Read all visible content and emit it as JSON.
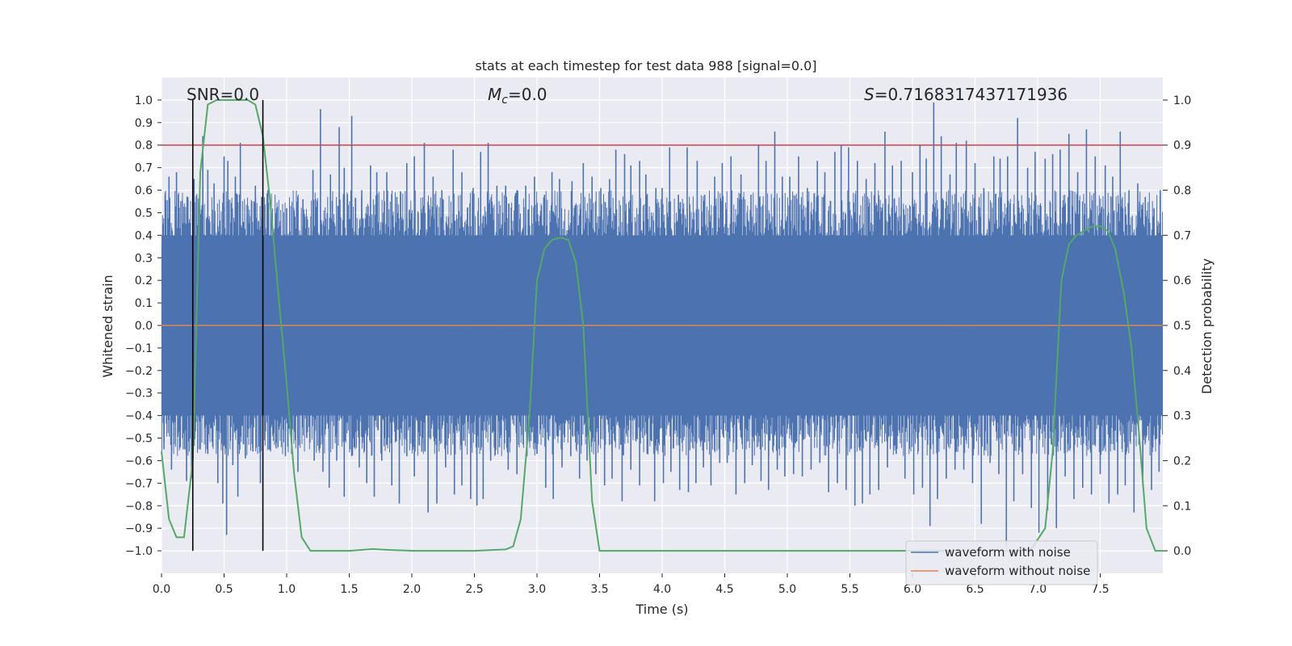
{
  "chart_data": {
    "type": "line",
    "title": "stats at each timestep for test data 988 [signal=0.0]",
    "xlabel": "Time (s)",
    "ylabel_left": "Whitened strain",
    "ylabel_right": "Detection probability",
    "xlim": [
      0.0,
      8.0
    ],
    "ylim_left": [
      -1.1,
      1.1
    ],
    "ylim_right": [
      -0.05,
      1.05
    ],
    "x_ticks": [
      0.0,
      0.5,
      1.0,
      1.5,
      2.0,
      2.5,
      3.0,
      3.5,
      4.0,
      4.5,
      5.0,
      5.5,
      6.0,
      6.5,
      7.0,
      7.5
    ],
    "x_tick_labels": [
      "0.0",
      "0.5",
      "1.0",
      "1.5",
      "2.0",
      "2.5",
      "3.0",
      "3.5",
      "4.0",
      "4.5",
      "5.0",
      "5.5",
      "6.0",
      "6.5",
      "7.0",
      "7.5"
    ],
    "y_ticks_left": [
      -1.0,
      -0.9,
      -0.8,
      -0.7,
      -0.6,
      -0.5,
      -0.4,
      -0.3,
      -0.2,
      -0.1,
      0.0,
      0.1,
      0.2,
      0.3,
      0.4,
      0.5,
      0.6,
      0.7,
      0.8,
      0.9,
      1.0
    ],
    "y_tick_labels_left": [
      "−1.0",
      "−0.9",
      "−0.8",
      "−0.7",
      "−0.6",
      "−0.5",
      "−0.4",
      "−0.3",
      "−0.2",
      "−0.1",
      "0.0",
      "0.1",
      "0.2",
      "0.3",
      "0.4",
      "0.5",
      "0.6",
      "0.7",
      "0.8",
      "0.9",
      "1.0"
    ],
    "y_ticks_right": [
      0.0,
      0.1,
      0.2,
      0.3,
      0.4,
      0.5,
      0.6,
      0.7,
      0.8,
      0.9,
      1.0
    ],
    "y_tick_labels_right": [
      "0.0",
      "0.1",
      "0.2",
      "0.3",
      "0.4",
      "0.5",
      "0.6",
      "0.7",
      "0.8",
      "0.9",
      "1.0"
    ],
    "grid": true,
    "legend_position": "bottom-right",
    "annotations": {
      "snr": "SNR=0.0",
      "mc": "M",
      "mc_sub": "c",
      "mc_value": "=0.0",
      "s_italic": "S",
      "s_value": "=0.7168317437171936"
    },
    "threshold": {
      "value_right_axis": 0.9,
      "color": "#c44e52"
    },
    "vlines": {
      "x": [
        0.25,
        0.81
      ],
      "y_range": [
        -1.0,
        1.0
      ],
      "color": "#000000"
    },
    "series": [
      {
        "name": "waveform with noise",
        "color": "#4c72b0",
        "axis": "left",
        "band_core": [
          -0.4,
          0.4
        ],
        "peak_samples": [
          [
            0.03,
            0.59
          ],
          [
            0.06,
            0.66
          ],
          [
            0.12,
            0.68
          ],
          [
            0.21,
            0.57
          ],
          [
            0.26,
            0.65
          ],
          [
            0.33,
            0.84
          ],
          [
            0.37,
            0.69
          ],
          [
            0.42,
            0.63
          ],
          [
            0.5,
            0.75
          ],
          [
            0.53,
            0.73
          ],
          [
            0.59,
            0.66
          ],
          [
            0.63,
            0.81
          ],
          [
            0.69,
            0.53
          ],
          [
            0.75,
            0.62
          ],
          [
            0.8,
            0.57
          ],
          [
            0.85,
            0.6
          ],
          [
            0.92,
            0.52
          ],
          [
            1.0,
            0.52
          ],
          [
            1.06,
            0.51
          ],
          [
            1.13,
            0.56
          ],
          [
            1.21,
            0.69
          ],
          [
            1.27,
            0.96
          ],
          [
            1.35,
            0.67
          ],
          [
            1.42,
            0.88
          ],
          [
            1.46,
            0.7
          ],
          [
            1.52,
            0.93
          ],
          [
            1.6,
            0.6
          ],
          [
            1.67,
            0.71
          ],
          [
            1.72,
            0.68
          ],
          [
            1.8,
            0.68
          ],
          [
            1.88,
            0.57
          ],
          [
            1.96,
            0.72
          ],
          [
            2.02,
            0.75
          ],
          [
            2.1,
            0.81
          ],
          [
            2.17,
            0.66
          ],
          [
            2.24,
            0.6
          ],
          [
            2.33,
            0.78
          ],
          [
            2.4,
            0.68
          ],
          [
            2.49,
            0.61
          ],
          [
            2.55,
            0.77
          ],
          [
            2.61,
            0.81
          ],
          [
            2.68,
            0.62
          ],
          [
            2.75,
            0.62
          ],
          [
            2.84,
            0.6
          ],
          [
            2.91,
            0.62
          ],
          [
            2.98,
            0.66
          ],
          [
            3.06,
            0.58
          ],
          [
            3.12,
            0.68
          ],
          [
            3.18,
            0.65
          ],
          [
            3.28,
            0.64
          ],
          [
            3.37,
            0.72
          ],
          [
            3.44,
            0.66
          ],
          [
            3.51,
            0.61
          ],
          [
            3.58,
            0.65
          ],
          [
            3.63,
            0.78
          ],
          [
            3.7,
            0.76
          ],
          [
            3.75,
            0.71
          ],
          [
            3.82,
            0.73
          ],
          [
            3.87,
            0.67
          ],
          [
            3.95,
            0.61
          ],
          [
            4.0,
            0.61
          ],
          [
            4.06,
            0.79
          ],
          [
            4.13,
            0.58
          ],
          [
            4.2,
            0.79
          ],
          [
            4.28,
            0.73
          ],
          [
            4.34,
            0.58
          ],
          [
            4.42,
            0.66
          ],
          [
            4.48,
            0.72
          ],
          [
            4.55,
            0.75
          ],
          [
            4.63,
            0.67
          ],
          [
            4.71,
            0.58
          ],
          [
            4.77,
            0.8
          ],
          [
            4.83,
            0.73
          ],
          [
            4.9,
            0.86
          ],
          [
            4.96,
            0.66
          ],
          [
            5.02,
            0.66
          ],
          [
            5.09,
            0.75
          ],
          [
            5.16,
            0.61
          ],
          [
            5.24,
            0.73
          ],
          [
            5.3,
            0.68
          ],
          [
            5.38,
            0.77
          ],
          [
            5.43,
            0.8
          ],
          [
            5.49,
            0.79
          ],
          [
            5.56,
            0.73
          ],
          [
            5.63,
            0.65
          ],
          [
            5.7,
            0.72
          ],
          [
            5.78,
            0.86
          ],
          [
            5.84,
            0.71
          ],
          [
            5.91,
            0.73
          ],
          [
            6.0,
            0.68
          ],
          [
            6.06,
            0.8
          ],
          [
            6.11,
            0.74
          ],
          [
            6.17,
            0.99
          ],
          [
            6.23,
            0.84
          ],
          [
            6.3,
            0.67
          ],
          [
            6.35,
            0.81
          ],
          [
            6.43,
            0.82
          ],
          [
            6.5,
            0.72
          ],
          [
            6.57,
            0.61
          ],
          [
            6.65,
            0.75
          ],
          [
            6.7,
            0.74
          ],
          [
            6.76,
            0.75
          ],
          [
            6.84,
            0.92
          ],
          [
            6.92,
            0.7
          ],
          [
            6.98,
            0.77
          ],
          [
            7.06,
            0.74
          ],
          [
            7.12,
            0.76
          ],
          [
            7.18,
            0.78
          ],
          [
            7.25,
            0.85
          ],
          [
            7.32,
            0.68
          ],
          [
            7.39,
            0.87
          ],
          [
            7.46,
            0.75
          ],
          [
            7.54,
            0.71
          ],
          [
            7.6,
            0.66
          ],
          [
            7.66,
            0.86
          ],
          [
            7.73,
            0.6
          ],
          [
            7.8,
            0.63
          ],
          [
            7.86,
            0.57
          ],
          [
            7.93,
            0.52
          ],
          [
            7.98,
            0.6
          ]
        ],
        "trough_samples": [
          [
            0.02,
            -0.55
          ],
          [
            0.08,
            -0.64
          ],
          [
            0.15,
            -0.54
          ],
          [
            0.2,
            -0.69
          ],
          [
            0.24,
            -0.68
          ],
          [
            0.31,
            -0.55
          ],
          [
            0.37,
            -0.57
          ],
          [
            0.45,
            -0.7
          ],
          [
            0.49,
            -0.79
          ],
          [
            0.52,
            -0.93
          ],
          [
            0.57,
            -0.62
          ],
          [
            0.61,
            -0.76
          ],
          [
            0.67,
            -0.59
          ],
          [
            0.73,
            -0.56
          ],
          [
            0.79,
            -0.7
          ],
          [
            0.86,
            -0.55
          ],
          [
            0.92,
            -0.52
          ],
          [
            0.99,
            -0.58
          ],
          [
            1.04,
            -0.57
          ],
          [
            1.09,
            -0.65
          ],
          [
            1.16,
            -0.5
          ],
          [
            1.22,
            -0.6
          ],
          [
            1.29,
            -0.65
          ],
          [
            1.34,
            -0.72
          ],
          [
            1.4,
            -0.6
          ],
          [
            1.46,
            -0.76
          ],
          [
            1.52,
            -0.58
          ],
          [
            1.58,
            -0.63
          ],
          [
            1.64,
            -0.7
          ],
          [
            1.7,
            -0.76
          ],
          [
            1.76,
            -0.6
          ],
          [
            1.84,
            -0.71
          ],
          [
            1.9,
            -0.79
          ],
          [
            1.96,
            -0.58
          ],
          [
            2.02,
            -0.67
          ],
          [
            2.08,
            -0.56
          ],
          [
            2.13,
            -0.83
          ],
          [
            2.2,
            -0.79
          ],
          [
            2.27,
            -0.63
          ],
          [
            2.34,
            -0.75
          ],
          [
            2.4,
            -0.71
          ],
          [
            2.47,
            -0.77
          ],
          [
            2.52,
            -0.8
          ],
          [
            2.57,
            -0.77
          ],
          [
            2.63,
            -0.6
          ],
          [
            2.7,
            -0.54
          ],
          [
            2.77,
            -0.64
          ],
          [
            2.84,
            -0.66
          ],
          [
            2.92,
            -0.58
          ],
          [
            3.0,
            -0.57
          ],
          [
            3.07,
            -0.72
          ],
          [
            3.13,
            -0.77
          ],
          [
            3.2,
            -0.63
          ],
          [
            3.27,
            -0.58
          ],
          [
            3.34,
            -0.68
          ],
          [
            3.4,
            -0.6
          ],
          [
            3.47,
            -0.66
          ],
          [
            3.54,
            -0.71
          ],
          [
            3.6,
            -0.68
          ],
          [
            3.68,
            -0.78
          ],
          [
            3.75,
            -0.64
          ],
          [
            3.82,
            -0.71
          ],
          [
            3.88,
            -0.57
          ],
          [
            3.94,
            -0.78
          ],
          [
            4.01,
            -0.7
          ],
          [
            4.07,
            -0.65
          ],
          [
            4.14,
            -0.73
          ],
          [
            4.21,
            -0.74
          ],
          [
            4.27,
            -0.7
          ],
          [
            4.33,
            -0.63
          ],
          [
            4.39,
            -0.71
          ],
          [
            4.46,
            -0.61
          ],
          [
            4.52,
            -0.61
          ],
          [
            4.59,
            -0.75
          ],
          [
            4.66,
            -0.7
          ],
          [
            4.72,
            -0.62
          ],
          [
            4.79,
            -0.69
          ],
          [
            4.85,
            -0.73
          ],
          [
            4.92,
            -0.64
          ],
          [
            4.98,
            -0.67
          ],
          [
            5.05,
            -0.66
          ],
          [
            5.12,
            -0.67
          ],
          [
            5.19,
            -0.64
          ],
          [
            5.26,
            -0.61
          ],
          [
            5.33,
            -0.74
          ],
          [
            5.4,
            -0.7
          ],
          [
            5.47,
            -0.73
          ],
          [
            5.54,
            -0.8
          ],
          [
            5.6,
            -0.79
          ],
          [
            5.66,
            -0.75
          ],
          [
            5.73,
            -0.73
          ],
          [
            5.8,
            -0.63
          ],
          [
            5.87,
            -0.57
          ],
          [
            5.94,
            -0.68
          ],
          [
            6.01,
            -0.75
          ],
          [
            6.08,
            -0.72
          ],
          [
            6.14,
            -0.89
          ],
          [
            6.2,
            -0.77
          ],
          [
            6.27,
            -0.68
          ],
          [
            6.34,
            -0.64
          ],
          [
            6.41,
            -0.64
          ],
          [
            6.48,
            -0.7
          ],
          [
            6.55,
            -0.88
          ],
          [
            6.62,
            -0.61
          ],
          [
            6.69,
            -0.66
          ],
          [
            6.75,
            -0.98
          ],
          [
            6.81,
            -0.78
          ],
          [
            6.88,
            -0.66
          ],
          [
            6.95,
            -0.81
          ],
          [
            7.01,
            -0.92
          ],
          [
            7.08,
            -0.82
          ],
          [
            7.15,
            -0.9
          ],
          [
            7.22,
            -0.67
          ],
          [
            7.29,
            -0.77
          ],
          [
            7.36,
            -0.72
          ],
          [
            7.43,
            -0.75
          ],
          [
            7.5,
            -0.66
          ],
          [
            7.57,
            -0.79
          ],
          [
            7.64,
            -0.75
          ],
          [
            7.7,
            -0.71
          ],
          [
            7.77,
            -0.83
          ],
          [
            7.84,
            -0.71
          ],
          [
            7.91,
            -0.73
          ],
          [
            7.97,
            -0.65
          ]
        ]
      },
      {
        "name": "waveform without noise",
        "color": "#dd8452",
        "axis": "left",
        "x": [
          0.0,
          8.0
        ],
        "y": [
          0.0,
          0.0
        ]
      },
      {
        "name": "detection probability",
        "color": "#55a868",
        "axis": "right",
        "x": [
          0.0,
          0.06,
          0.12,
          0.18,
          0.25,
          0.31,
          0.37,
          0.44,
          0.5,
          0.56,
          0.62,
          0.69,
          0.75,
          0.81,
          0.87,
          0.94,
          1.0,
          1.06,
          1.12,
          1.19,
          1.25,
          1.5,
          1.69,
          1.81,
          2.0,
          2.5,
          2.75,
          2.81,
          2.87,
          2.94,
          3.0,
          3.06,
          3.12,
          3.19,
          3.25,
          3.31,
          3.37,
          3.44,
          3.5,
          3.56,
          4.0,
          5.0,
          6.0,
          6.75,
          6.94,
          7.06,
          7.12,
          7.19,
          7.25,
          7.31,
          7.37,
          7.44,
          7.5,
          7.56,
          7.62,
          7.69,
          7.75,
          7.81,
          7.87,
          7.94,
          8.0
        ],
        "y": [
          0.22,
          0.07,
          0.03,
          0.03,
          0.2,
          0.84,
          0.99,
          1.0,
          1.0,
          1.0,
          1.0,
          1.0,
          0.99,
          0.92,
          0.77,
          0.55,
          0.37,
          0.17,
          0.03,
          0.0,
          0.0,
          0.0,
          0.004,
          0.002,
          0.0,
          0.0,
          0.003,
          0.01,
          0.07,
          0.3,
          0.6,
          0.67,
          0.69,
          0.695,
          0.69,
          0.64,
          0.5,
          0.11,
          0.0,
          0.0,
          0.0,
          0.0,
          0.0,
          0.0,
          0.0,
          0.05,
          0.22,
          0.6,
          0.68,
          0.7,
          0.71,
          0.72,
          0.72,
          0.71,
          0.67,
          0.57,
          0.45,
          0.26,
          0.05,
          0.0,
          0.0
        ]
      }
    ]
  }
}
